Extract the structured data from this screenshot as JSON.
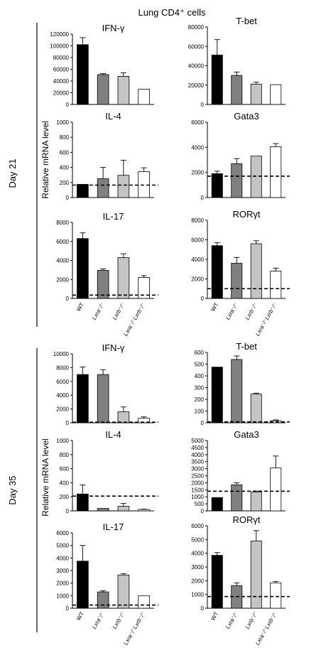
{
  "figure_title": "Lung CD4⁺ cells",
  "ylabel": "Relative mRNA level",
  "groups": [
    "WT",
    "Lxra⁻/⁻",
    "Lxrb⁻/⁻",
    "Lxra⁻/⁻Lxrb⁻/⁻"
  ],
  "bar_colors": [
    "#000000",
    "#808080",
    "#c4c4c4",
    "#ffffff"
  ],
  "panels": [
    {
      "label": "Day 21"
    },
    {
      "label": "Day 35"
    }
  ],
  "chart_data": [
    {
      "type": "bar",
      "panel": "Day 21",
      "title": "IFN-γ",
      "categories": [
        "WT",
        "Lxra⁻/⁻",
        "Lxrb⁻/⁻",
        "Lxra⁻/⁻Lxrb⁻/⁻"
      ],
      "values": [
        102000,
        51000,
        48000,
        26000
      ],
      "errors": [
        12000,
        1500,
        6000,
        0
      ],
      "ylim": [
        0,
        120000
      ],
      "yticks": [
        0,
        20000,
        40000,
        60000,
        80000,
        100000,
        120000
      ],
      "ytick_labels": [
        "0",
        "20000",
        "40000",
        "60000",
        "80000",
        "100000",
        "120000"
      ]
    },
    {
      "type": "bar",
      "panel": "Day 21",
      "title": "T-bet",
      "categories": [
        "WT",
        "Lxra⁻/⁻",
        "Lxrb⁻/⁻",
        "Lxra⁻/⁻Lxrb⁻/⁻"
      ],
      "values": [
        51000,
        30000,
        21000,
        20500
      ],
      "errors": [
        16000,
        3500,
        2000,
        0
      ],
      "ylim": [
        0,
        80000
      ],
      "yticks": [
        0,
        20000,
        40000,
        60000,
        80000
      ],
      "ytick_labels": [
        "0",
        "20000",
        "40000",
        "60000",
        "80000"
      ]
    },
    {
      "type": "bar",
      "panel": "Day 21",
      "title": "IL-4",
      "categories": [
        "WT",
        "Lxra⁻/⁻",
        "Lxrb⁻/⁻",
        "Lxra⁻/⁻Lxrb⁻/⁻"
      ],
      "values": [
        175,
        250,
        295,
        345
      ],
      "errors": [
        0,
        150,
        200,
        50
      ],
      "ylim": [
        0,
        1000
      ],
      "yticks": [
        0,
        200,
        400,
        600,
        800,
        1000
      ],
      "ytick_labels": [
        "0",
        "200",
        "400",
        "600",
        "800",
        "1000"
      ],
      "baseline": 165
    },
    {
      "type": "bar",
      "panel": "Day 21",
      "title": "Gata3",
      "categories": [
        "WT",
        "Lxra⁻/⁻",
        "Lxrb⁻/⁻",
        "Lxra⁻/⁻Lxrb⁻/⁻"
      ],
      "values": [
        1900,
        2700,
        3300,
        4050
      ],
      "errors": [
        200,
        400,
        0,
        250
      ],
      "ylim": [
        0,
        6000
      ],
      "yticks": [
        0,
        2000,
        4000,
        6000
      ],
      "ytick_labels": [
        "0",
        "2000",
        "4000",
        "6000"
      ],
      "baseline": 1700
    },
    {
      "type": "bar",
      "panel": "Day 21",
      "title": "IL-17",
      "categories": [
        "WT",
        "Lxra⁻/⁻",
        "Lxrb⁻/⁻",
        "Lxra⁻/⁻Lxrb⁻/⁻"
      ],
      "values": [
        6300,
        2950,
        4300,
        2200
      ],
      "errors": [
        600,
        150,
        400,
        200
      ],
      "ylim": [
        0,
        8000
      ],
      "yticks": [
        0,
        2000,
        4000,
        6000,
        8000
      ],
      "ytick_labels": [
        "0",
        "2000",
        "4000",
        "6000",
        "8000"
      ],
      "baseline": 350
    },
    {
      "type": "bar",
      "panel": "Day 21",
      "title": "RORγt",
      "categories": [
        "WT",
        "Lxra⁻/⁻",
        "Lxrb⁻/⁻",
        "Lxra⁻/⁻Lxrb⁻/⁻"
      ],
      "values": [
        5400,
        3600,
        5600,
        2800
      ],
      "errors": [
        300,
        600,
        300,
        300
      ],
      "ylim": [
        0,
        8000
      ],
      "yticks": [
        0,
        2000,
        4000,
        6000,
        8000
      ],
      "ytick_labels": [
        "0",
        "2000",
        "4000",
        "6000",
        "8000"
      ],
      "baseline": 1000
    },
    {
      "type": "bar",
      "panel": "Day 35",
      "title": "IFN-γ",
      "categories": [
        "WT",
        "Lxra⁻/⁻",
        "Lxrb⁻/⁻",
        "Lxra⁻/⁻Lxrb⁻/⁻"
      ],
      "values": [
        7000,
        7000,
        1600,
        650
      ],
      "errors": [
        1100,
        700,
        700,
        200
      ],
      "ylim": [
        0,
        10000
      ],
      "yticks": [
        0,
        2000,
        4000,
        6000,
        8000,
        10000
      ],
      "ytick_labels": [
        "0",
        "2000",
        "4000",
        "6000",
        "8000",
        "10000"
      ],
      "baseline": 80
    },
    {
      "type": "bar",
      "panel": "Day 35",
      "title": "T-bet",
      "categories": [
        "WT",
        "Lxra⁻/⁻",
        "Lxrb⁻/⁻",
        "Lxra⁻/⁻Lxrb⁻/⁻"
      ],
      "values": [
        475,
        540,
        245,
        18
      ],
      "errors": [
        0,
        30,
        8,
        6
      ],
      "ylim": [
        0,
        600
      ],
      "yticks": [
        0,
        100,
        200,
        300,
        400,
        500,
        600
      ],
      "ytick_labels": [
        "0",
        "100",
        "200",
        "300",
        "400",
        "500",
        "600"
      ],
      "baseline": 8
    },
    {
      "type": "bar",
      "panel": "Day 35",
      "title": "IL-4",
      "categories": [
        "WT",
        "Lxra⁻/⁻",
        "Lxrb⁻/⁻",
        "Lxra⁻/⁻Lxrb⁻/⁻"
      ],
      "values": [
        240,
        35,
        65,
        20
      ],
      "errors": [
        130,
        0,
        40,
        5
      ],
      "ylim": [
        0,
        1000
      ],
      "yticks": [
        0,
        200,
        400,
        600,
        800,
        1000
      ],
      "ytick_labels": [
        "0",
        "200",
        "400",
        "600",
        "800",
        "1000"
      ],
      "baseline": 210
    },
    {
      "type": "bar",
      "panel": "Day 35",
      "title": "Gata3",
      "categories": [
        "WT",
        "Lxra⁻/⁻",
        "Lxrb⁻/⁻",
        "Lxra⁻/⁻Lxrb⁻/⁻"
      ],
      "values": [
        950,
        1850,
        1350,
        3050
      ],
      "errors": [
        0,
        150,
        50,
        850
      ],
      "ylim": [
        0,
        5000
      ],
      "yticks": [
        0,
        500,
        1000,
        1500,
        2000,
        2500,
        3000,
        3500,
        4000,
        4500,
        5000
      ],
      "ytick_labels": [
        "0",
        "500",
        "1000",
        "1500",
        "2000",
        "2500",
        "3000",
        "3500",
        "4000",
        "4500",
        "5000"
      ],
      "baseline": 1400
    },
    {
      "type": "bar",
      "panel": "Day 35",
      "title": "IL-17",
      "categories": [
        "WT",
        "Lxra⁻/⁻",
        "Lxrb⁻/⁻",
        "Lxra⁻/⁻Lxrb⁻/⁻"
      ],
      "values": [
        3750,
        1300,
        2650,
        1000
      ],
      "errors": [
        1250,
        100,
        100,
        0
      ],
      "ylim": [
        0,
        6000
      ],
      "yticks": [
        0,
        1000,
        2000,
        3000,
        4000,
        5000,
        6000
      ],
      "ytick_labels": [
        "0",
        "1000",
        "2000",
        "3000",
        "4000",
        "5000",
        "6000"
      ],
      "baseline": 250
    },
    {
      "type": "bar",
      "panel": "Day 35",
      "title": "RORγt",
      "categories": [
        "WT",
        "Lxra⁻/⁻",
        "Lxrb⁻/⁻",
        "Lxra⁻/⁻Lxrb⁻/⁻"
      ],
      "values": [
        3850,
        1650,
        4900,
        1850
      ],
      "errors": [
        200,
        200,
        750,
        100
      ],
      "ylim": [
        0,
        6000
      ],
      "yticks": [
        0,
        1000,
        2000,
        3000,
        4000,
        5000,
        6000
      ],
      "ytick_labels": [
        "0",
        "1000",
        "2000",
        "3000",
        "4000",
        "5000",
        "6000"
      ],
      "baseline": 850
    }
  ]
}
